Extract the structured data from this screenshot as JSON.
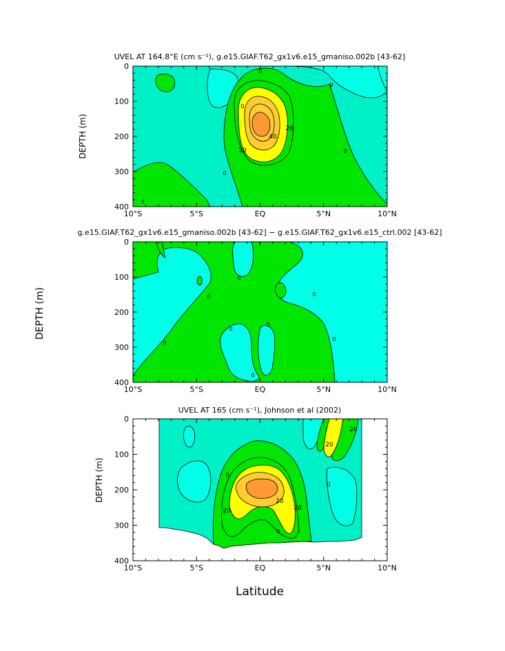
{
  "panels": [
    {
      "title": "UVEL AT 164.8°E (cm s⁻¹), g.e15.GIAF.T62_gx1v6.e15_gmaniso.002b [43-62]",
      "ylabel": "DEPTH (m)",
      "xlabel": "",
      "contour_labels": [
        "0",
        "0",
        "20",
        "40",
        "20",
        "0",
        "0",
        "0",
        "0"
      ]
    },
    {
      "title": "g.e15.GIAF.T62_gx1v6.e15_gmaniso.002b [43-62] − g.e15.GIAF.T62_gx1v6.e15_ctrl.002 [43-62]",
      "ylabel": "DEPTH (m)",
      "xlabel": "",
      "contour_labels": [
        "0",
        "0",
        "0",
        "0",
        "0",
        "0",
        "0",
        "0"
      ]
    },
    {
      "title": "UVEL AT 165 (cm s⁻¹), Johnson et al (2002)",
      "ylabel": "DEPTH (m)",
      "xlabel": "Latitude",
      "contour_labels": [
        "20",
        "20",
        "20",
        "20",
        "20",
        "0",
        "0",
        "0"
      ]
    }
  ],
  "colors": {
    "cyan": "#00ffe6",
    "teal": "#00f0c8",
    "green": "#00e600",
    "yellow": "#ffff00",
    "gold": "#ffcc33",
    "orange": "#ff9933",
    "line": "#000000"
  },
  "chart_data": [
    {
      "type": "heatmap",
      "title": "UVEL AT 164.8°E (cm s⁻¹), g.e15.GIAF.T62_gx1v6.e15_gmaniso.002b [43-62]",
      "xlabel": "",
      "ylabel": "DEPTH (m)",
      "x_ticks": [
        "10°S",
        "5°S",
        "EQ",
        "5°N",
        "10°N"
      ],
      "x_values": [
        -10,
        -5,
        0,
        5,
        10
      ],
      "y_ticks": [
        "0",
        "100",
        "200",
        "300",
        "400"
      ],
      "y_values": [
        0,
        100,
        200,
        300,
        400
      ],
      "xlim": [
        -10,
        10
      ],
      "ylim": [
        400,
        0
      ],
      "contour_levels": [
        0,
        10,
        20,
        30,
        40,
        50
      ],
      "max_value": 50,
      "max_location": {
        "lat": 0,
        "depth": 175
      }
    },
    {
      "type": "heatmap",
      "title": "g.e15.GIAF.T62_gx1v6.e15_gmaniso.002b [43-62] − g.e15.GIAF.T62_gx1v6.e15_ctrl.002 [43-62]",
      "xlabel": "",
      "ylabel": "DEPTH (m)",
      "x_ticks": [
        "10°S",
        "5°S",
        "EQ",
        "5°N",
        "10°N"
      ],
      "x_values": [
        -10,
        -5,
        0,
        5,
        10
      ],
      "y_ticks": [
        "0",
        "100",
        "200",
        "300",
        "400"
      ],
      "y_values": [
        0,
        100,
        200,
        300,
        400
      ],
      "xlim": [
        -10,
        10
      ],
      "ylim": [
        400,
        0
      ],
      "contour_levels": [
        0
      ]
    },
    {
      "type": "heatmap",
      "title": "UVEL AT 165 (cm s⁻¹), Johnson et al (2002)",
      "xlabel": "Latitude",
      "ylabel": "DEPTH (m)",
      "x_ticks": [
        "10°S",
        "5°S",
        "EQ",
        "5°N",
        "10°N"
      ],
      "x_values": [
        -10,
        -5,
        0,
        5,
        10
      ],
      "y_ticks": [
        "0",
        "100",
        "200",
        "300",
        "400"
      ],
      "y_values": [
        0,
        100,
        200,
        300,
        400
      ],
      "xlim": [
        -10,
        10
      ],
      "ylim": [
        400,
        0
      ],
      "contour_levels": [
        0,
        10,
        20,
        30,
        40
      ],
      "data_extent": {
        "lat": [
          -8,
          8
        ],
        "depth": [
          0,
          350
        ]
      },
      "max_location": {
        "lat": 0,
        "depth": 185
      }
    }
  ]
}
